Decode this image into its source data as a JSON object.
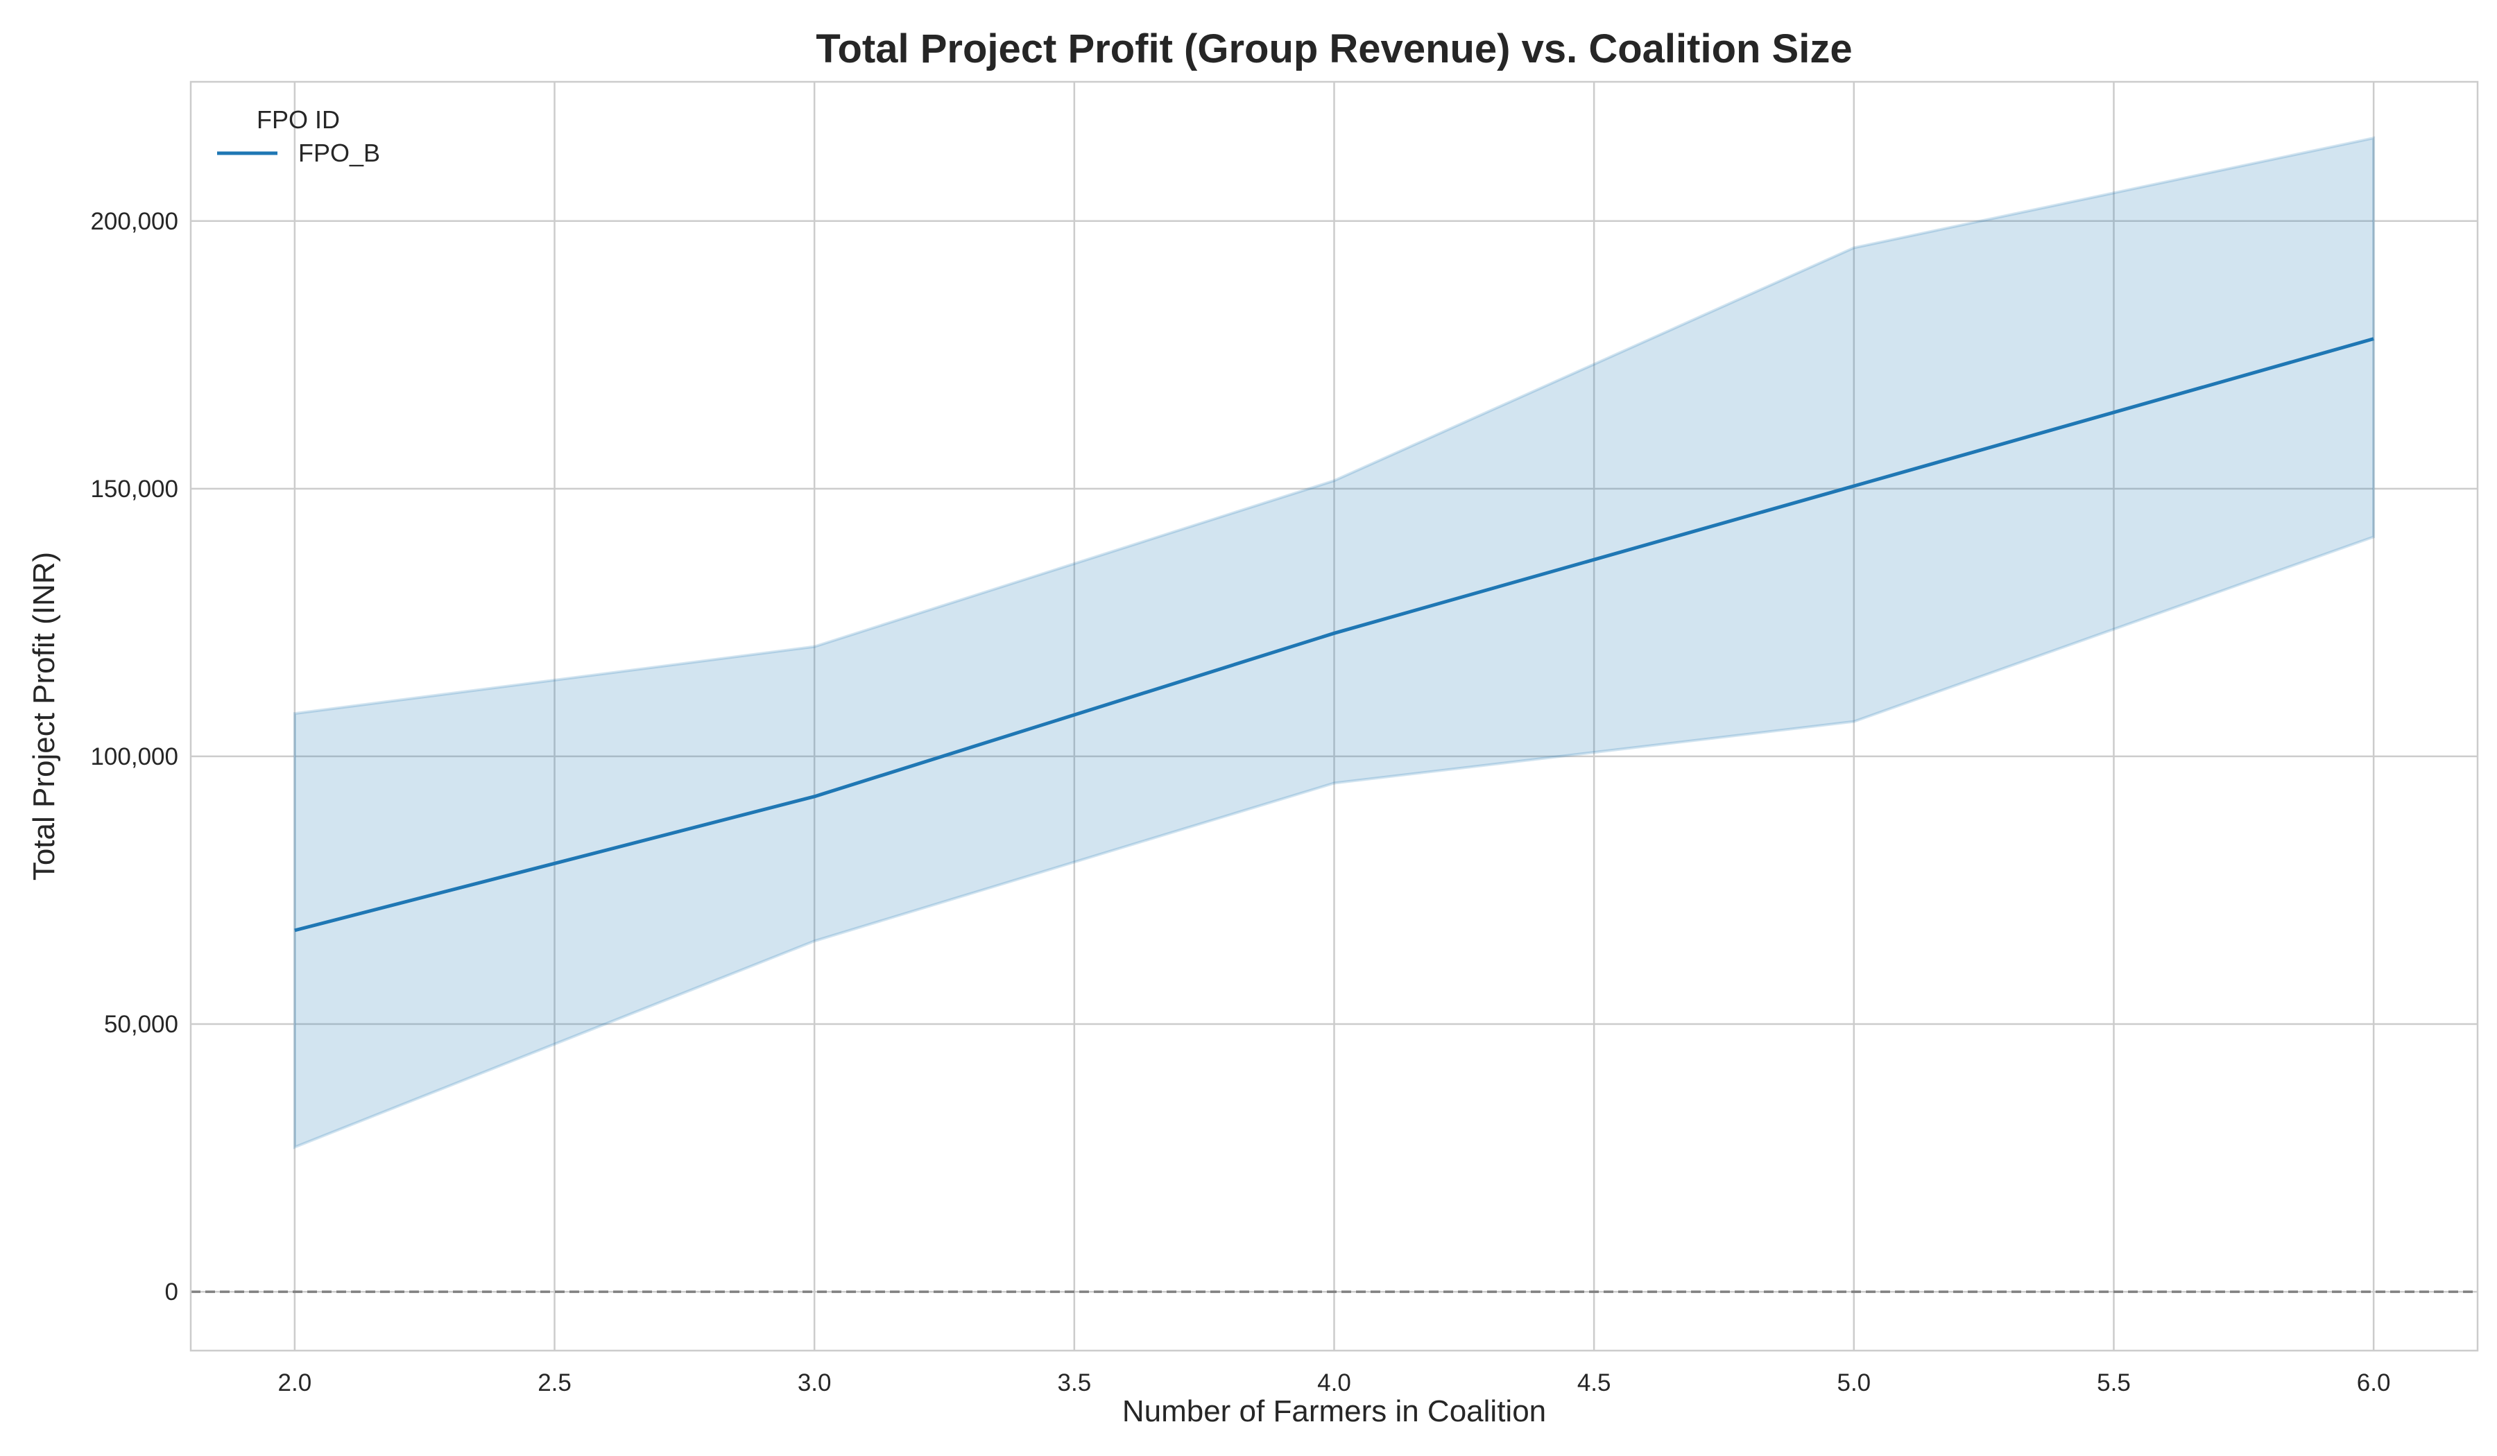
{
  "chart_data": {
    "type": "line",
    "title": "Total Project Profit (Group Revenue) vs. Coalition Size",
    "xlabel": "Number of Farmers in Coalition",
    "ylabel": "Total Project Profit (INR)",
    "xlim": [
      1.8,
      6.2
    ],
    "ylim": [
      -11000,
      226000
    ],
    "x_ticks": [
      2.0,
      2.5,
      3.0,
      3.5,
      4.0,
      4.5,
      5.0,
      5.5,
      6.0
    ],
    "x_tick_labels": [
      "2.0",
      "2.5",
      "3.0",
      "3.5",
      "4.0",
      "4.5",
      "5.0",
      "5.5",
      "6.0"
    ],
    "y_ticks": [
      0,
      50000,
      100000,
      150000,
      200000
    ],
    "y_tick_labels": [
      "0",
      "50,000",
      "100,000",
      "150,000",
      "200,000"
    ],
    "grid": true,
    "reference_line": {
      "y": 0,
      "style": "dashed",
      "color": "#808080"
    },
    "legend": {
      "title": "FPO ID",
      "placement": "top-left"
    },
    "series": [
      {
        "name": "FPO_B",
        "color": "#1f77b4",
        "x": [
          2,
          3,
          4,
          5,
          6
        ],
        "values": [
          67500,
          92500,
          123000,
          150500,
          178000
        ],
        "ci_lower": [
          27000,
          65500,
          95000,
          106500,
          141000
        ],
        "ci_upper": [
          108000,
          120500,
          151500,
          195000,
          215500
        ]
      }
    ]
  }
}
